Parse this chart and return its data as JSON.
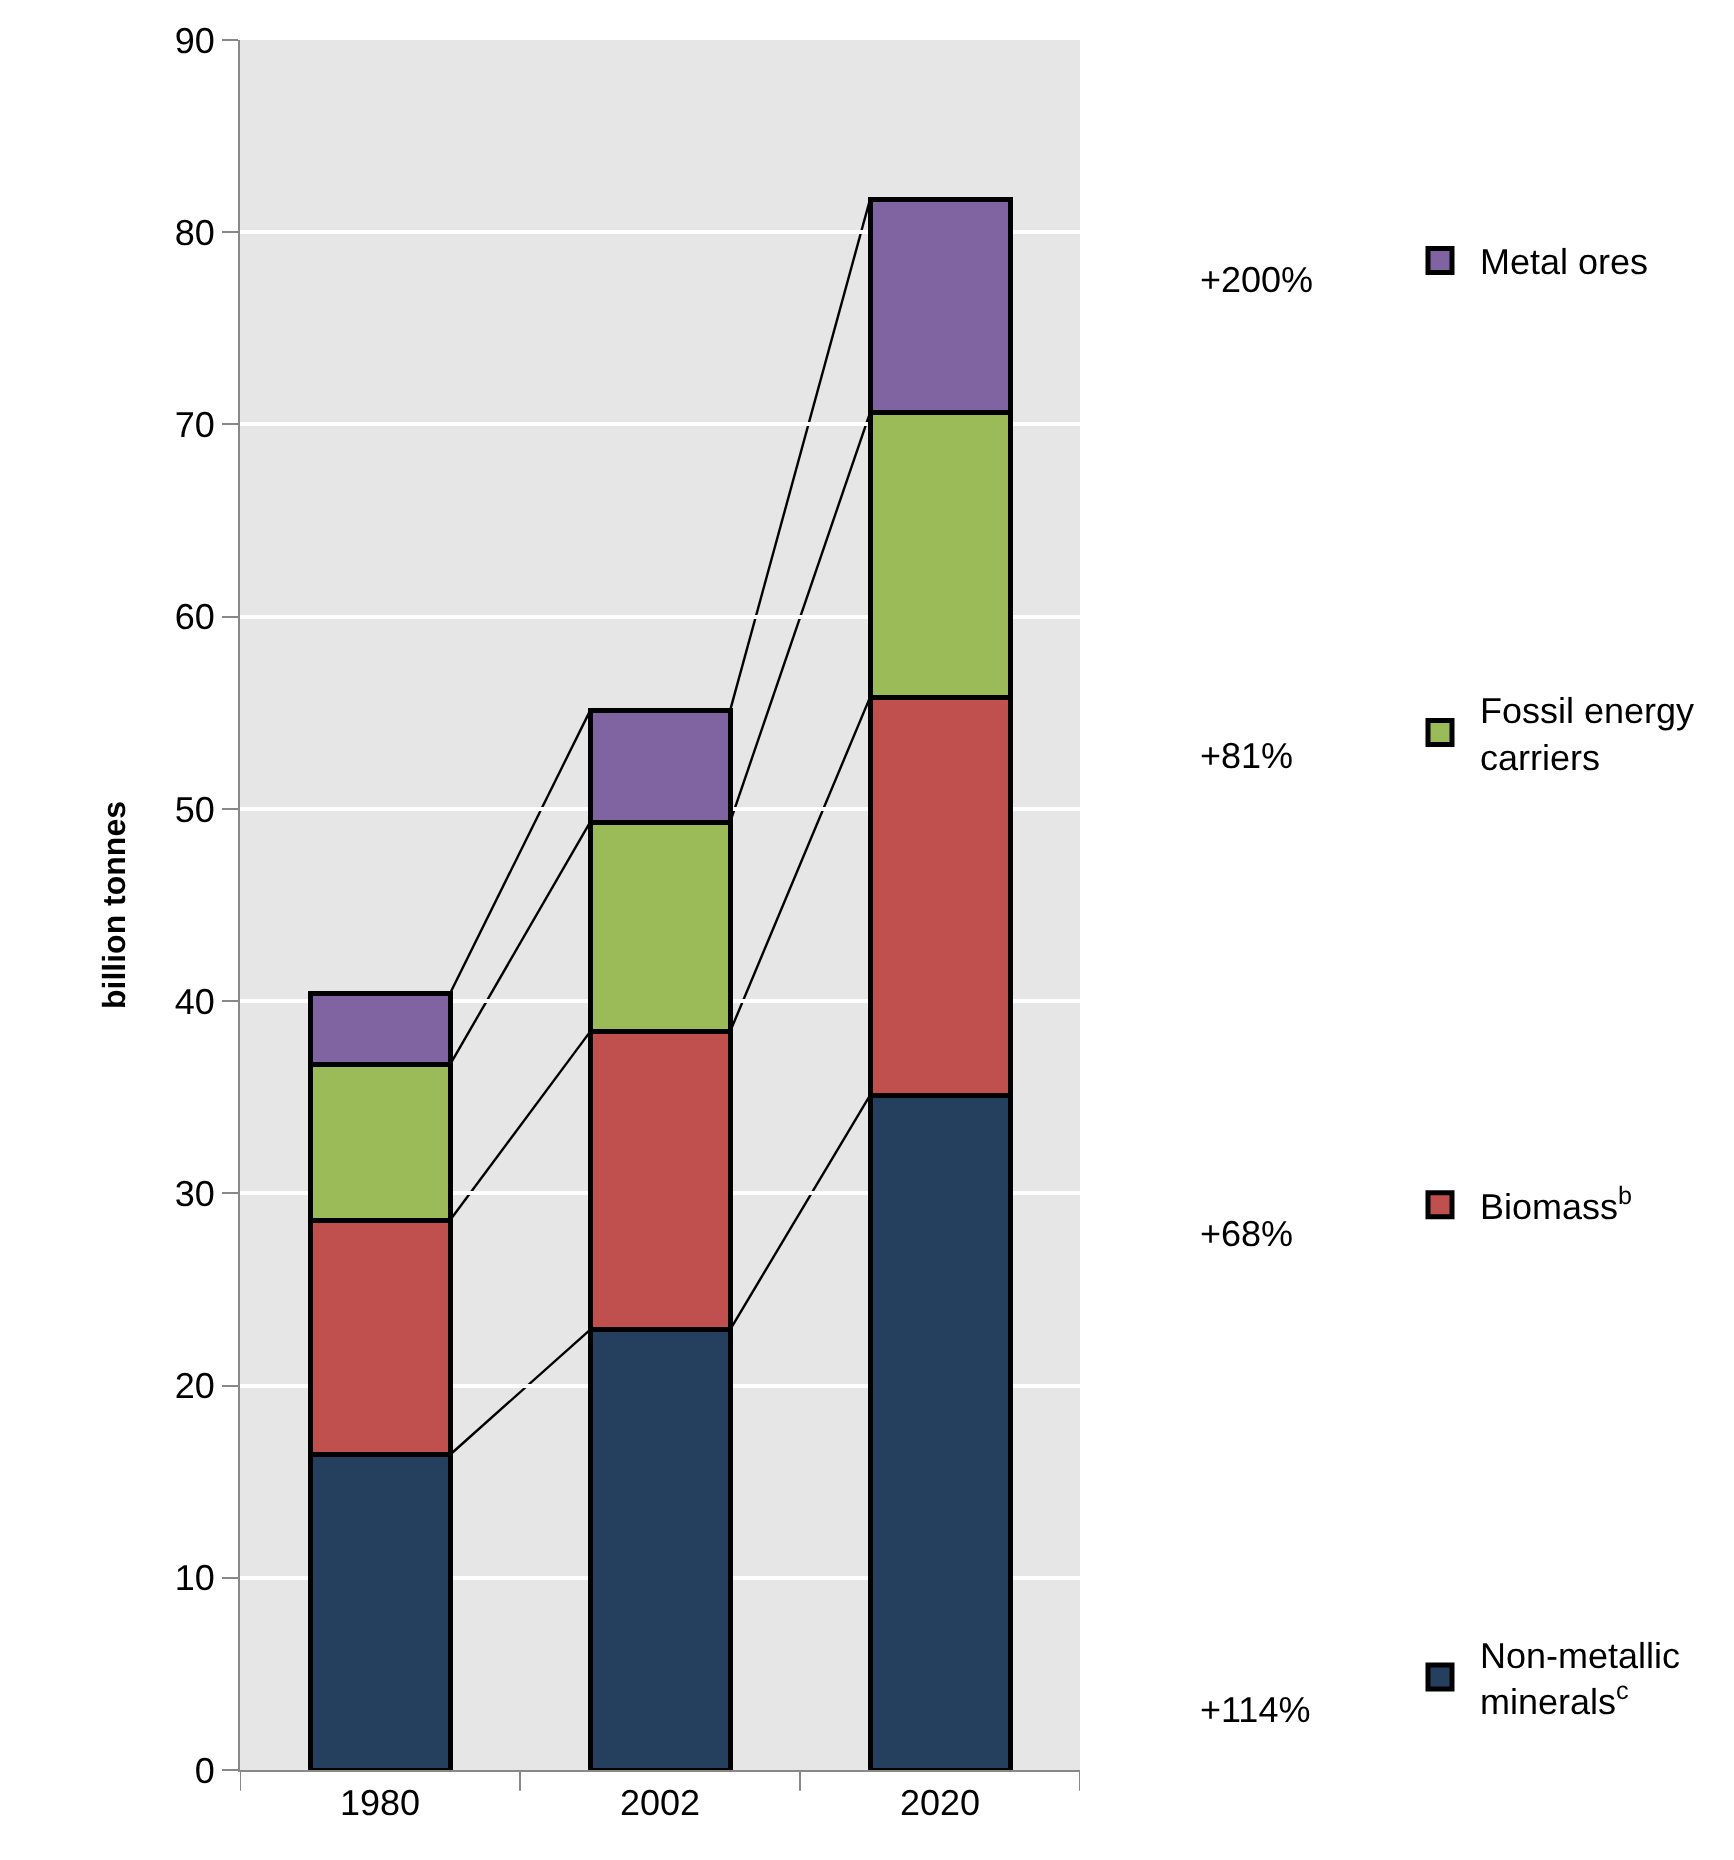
{
  "chart_data": {
    "type": "bar",
    "stacked": true,
    "categories": [
      "1980",
      "2002",
      "2020"
    ],
    "ylabel": "billion tonnes",
    "ylim": [
      0,
      90
    ],
    "yticks": [
      0,
      10,
      20,
      30,
      40,
      50,
      60,
      70,
      80,
      90
    ],
    "grid": "y",
    "legend": "right",
    "series": [
      {
        "name": "Non-metallic minerals$^{c}$",
        "color": "#253f5f",
        "values": [
          16.4,
          22.9,
          35.1
        ]
      },
      {
        "name": "Biomass$^{b}$",
        "color": "#c0504d",
        "values": [
          12.2,
          15.5,
          20.7
        ]
      },
      {
        "name": "Fossil energy carriers",
        "color": "#9bbb59",
        "values": [
          8.1,
          10.9,
          14.8
        ]
      },
      {
        "name": "Metal ores",
        "color": "#8064a2",
        "values": [
          3.7,
          5.8,
          11.1
        ]
      }
    ],
    "annotations": [
      "+200%",
      "+81%",
      "+68%",
      "+114%"
    ]
  }
}
